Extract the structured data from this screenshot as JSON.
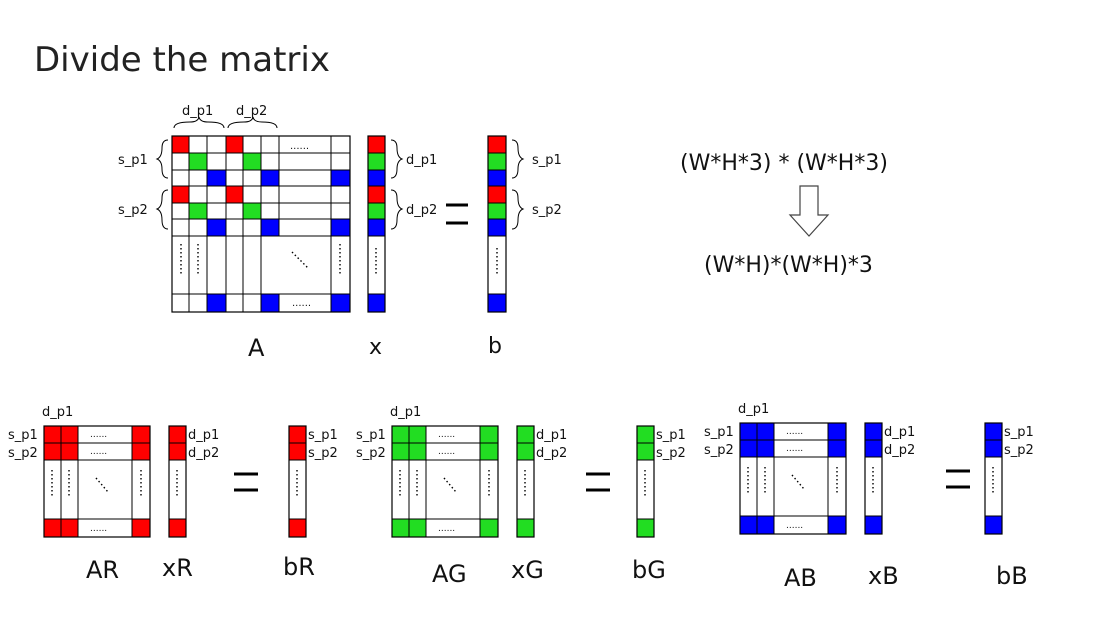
{
  "slide": {
    "title": "Divide the matrix"
  },
  "colors": {
    "red": "#ff0000",
    "green": "#22dd22",
    "blue": "#0000ff",
    "line": "#000000"
  },
  "top_diagram": {
    "dp1": "d_p1",
    "dp2": "d_p2",
    "sp1": "s_p1",
    "sp2": "s_p2",
    "dots_h": "......",
    "label_A": "A",
    "label_x": "x",
    "label_b": "b"
  },
  "formula": {
    "line1": "(W*H*3) * (W*H*3)",
    "line2": "(W*H)*(W*H)*3"
  },
  "split": {
    "dp1": "d_p1",
    "dp2": "d_p2",
    "sp1": "s_p1",
    "sp2": "s_p2",
    "dots_h": "......",
    "red": {
      "A": "AR",
      "x": "xR",
      "b": "bR"
    },
    "green": {
      "A": "AG",
      "x": "xG",
      "b": "bG"
    },
    "blue": {
      "A": "AB",
      "x": "xB",
      "b": "bB"
    }
  }
}
